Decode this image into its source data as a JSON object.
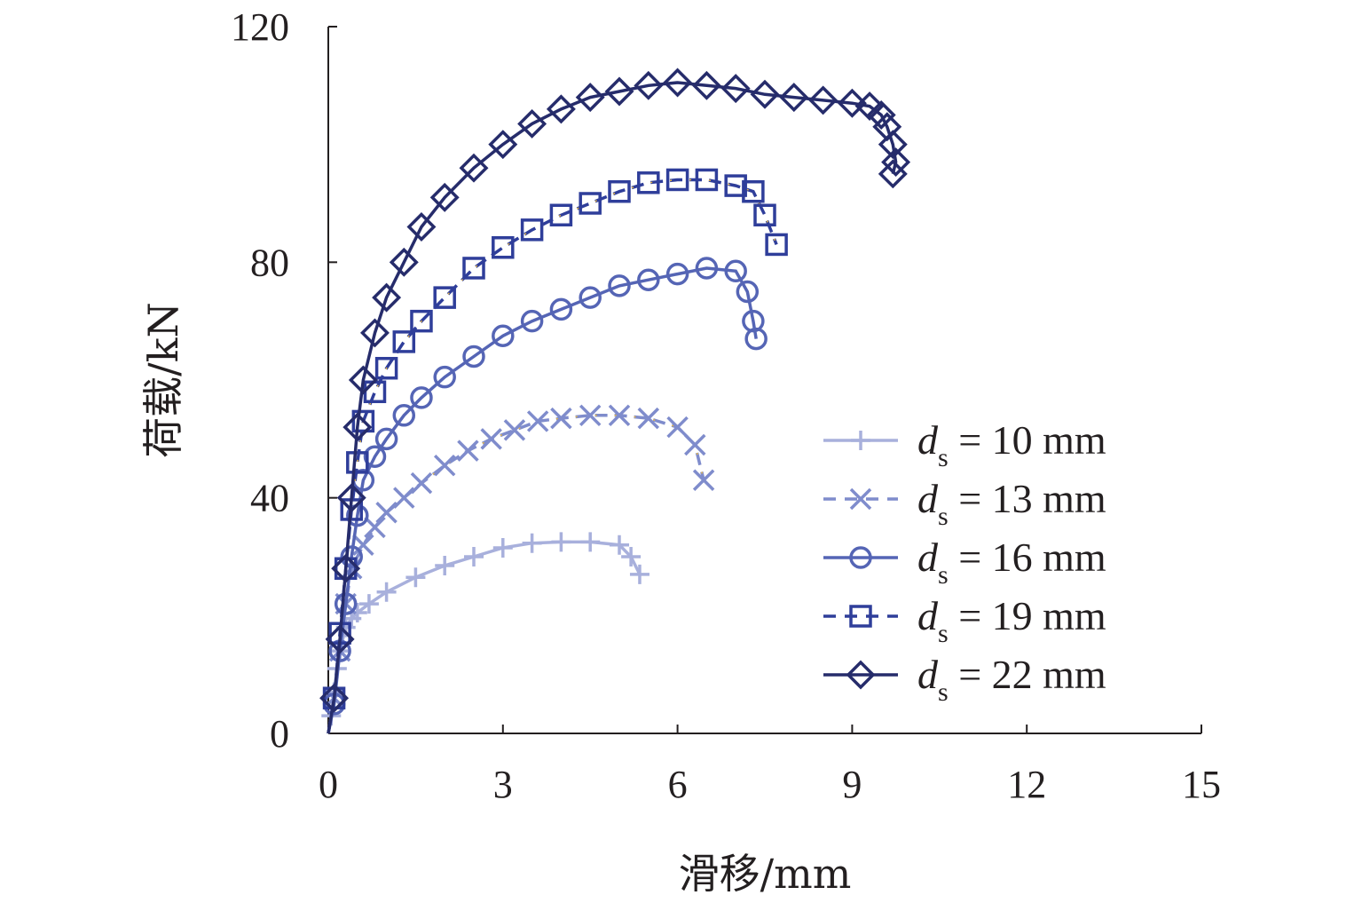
{
  "chart_data": {
    "type": "line",
    "xlabel": "滑移/mm",
    "ylabel": "荷载/kN",
    "xlim": [
      0,
      15
    ],
    "ylim": [
      0,
      120
    ],
    "xticks": [
      "0",
      "3",
      "6",
      "9",
      "12",
      "15"
    ],
    "yticks": [
      "0",
      "40",
      "80",
      "120"
    ],
    "grid": false,
    "legend_position": "bottom-right",
    "series": [
      {
        "name": "ds = 10 mm",
        "label_var": "d",
        "label_sub": "s",
        "label_rest": " = 10 mm",
        "color": "#a8b0dc",
        "marker": "plus",
        "dashed": false,
        "points": [
          [
            0,
            0
          ],
          [
            0.05,
            3
          ],
          [
            0.1,
            7
          ],
          [
            0.15,
            11
          ],
          [
            0.2,
            14
          ],
          [
            0.3,
            18
          ],
          [
            0.4,
            19.5
          ],
          [
            0.5,
            20.5
          ],
          [
            0.7,
            22
          ],
          [
            1,
            24
          ],
          [
            1.5,
            26.5
          ],
          [
            2,
            28.5
          ],
          [
            2.5,
            30
          ],
          [
            3,
            31.5
          ],
          [
            3.5,
            32.3
          ],
          [
            4,
            32.5
          ],
          [
            4.5,
            32.5
          ],
          [
            5,
            32
          ],
          [
            5.2,
            30
          ],
          [
            5.35,
            27
          ]
        ]
      },
      {
        "name": "ds = 13 mm",
        "label_var": "d",
        "label_sub": "s",
        "label_rest": " = 13 mm",
        "color": "#7f8ccc",
        "marker": "x",
        "dashed": true,
        "points": [
          [
            0,
            0
          ],
          [
            0.1,
            6
          ],
          [
            0.2,
            14
          ],
          [
            0.3,
            22
          ],
          [
            0.4,
            28
          ],
          [
            0.6,
            32
          ],
          [
            0.8,
            35
          ],
          [
            1.0,
            37.5
          ],
          [
            1.3,
            40
          ],
          [
            1.6,
            42.5
          ],
          [
            2.0,
            45.5
          ],
          [
            2.4,
            48
          ],
          [
            2.8,
            50
          ],
          [
            3.2,
            51.5
          ],
          [
            3.6,
            53
          ],
          [
            4.0,
            53.5
          ],
          [
            4.5,
            54
          ],
          [
            5.0,
            54
          ],
          [
            5.5,
            53.5
          ],
          [
            6.0,
            52
          ],
          [
            6.3,
            49
          ],
          [
            6.45,
            43
          ]
        ]
      },
      {
        "name": "ds = 16 mm",
        "label_var": "d",
        "label_sub": "s",
        "label_rest": " = 16 mm",
        "color": "#5565b5",
        "marker": "circle",
        "dashed": false,
        "points": [
          [
            0,
            0
          ],
          [
            0.1,
            5
          ],
          [
            0.2,
            14
          ],
          [
            0.3,
            22
          ],
          [
            0.4,
            30
          ],
          [
            0.5,
            37
          ],
          [
            0.6,
            43
          ],
          [
            0.8,
            47
          ],
          [
            1.0,
            50
          ],
          [
            1.3,
            54
          ],
          [
            1.6,
            57
          ],
          [
            2.0,
            60.5
          ],
          [
            2.5,
            64
          ],
          [
            3.0,
            67.5
          ],
          [
            3.5,
            70
          ],
          [
            4.0,
            72
          ],
          [
            4.5,
            74
          ],
          [
            5.0,
            76
          ],
          [
            5.5,
            77
          ],
          [
            6.0,
            78
          ],
          [
            6.5,
            79
          ],
          [
            7.0,
            78.5
          ],
          [
            7.2,
            75
          ],
          [
            7.3,
            70
          ],
          [
            7.35,
            67
          ]
        ]
      },
      {
        "name": "ds = 19 mm",
        "label_var": "d",
        "label_sub": "s",
        "label_rest": " = 19 mm",
        "color": "#2f3e9a",
        "marker": "square",
        "dashed": true,
        "points": [
          [
            0,
            0
          ],
          [
            0.1,
            6
          ],
          [
            0.2,
            17
          ],
          [
            0.3,
            28
          ],
          [
            0.4,
            38
          ],
          [
            0.5,
            46
          ],
          [
            0.6,
            53
          ],
          [
            0.8,
            58
          ],
          [
            1.0,
            62
          ],
          [
            1.3,
            66.5
          ],
          [
            1.6,
            70
          ],
          [
            2.0,
            74
          ],
          [
            2.5,
            79
          ],
          [
            3.0,
            82.5
          ],
          [
            3.5,
            85.5
          ],
          [
            4.0,
            88
          ],
          [
            4.5,
            90
          ],
          [
            5.0,
            92
          ],
          [
            5.5,
            93.5
          ],
          [
            6.0,
            94
          ],
          [
            6.5,
            94
          ],
          [
            7.0,
            93
          ],
          [
            7.3,
            92
          ],
          [
            7.5,
            88
          ],
          [
            7.7,
            83
          ]
        ]
      },
      {
        "name": "ds = 22 mm",
        "label_var": "d",
        "label_sub": "s",
        "label_rest": " = 22 mm",
        "color": "#262c6b",
        "marker": "diamond",
        "dashed": false,
        "points": [
          [
            0,
            0
          ],
          [
            0.1,
            6
          ],
          [
            0.2,
            16
          ],
          [
            0.3,
            28
          ],
          [
            0.4,
            40
          ],
          [
            0.5,
            52
          ],
          [
            0.6,
            60
          ],
          [
            0.8,
            68
          ],
          [
            1.0,
            74
          ],
          [
            1.3,
            80
          ],
          [
            1.6,
            86
          ],
          [
            2.0,
            91
          ],
          [
            2.5,
            96
          ],
          [
            3.0,
            100
          ],
          [
            3.5,
            103.5
          ],
          [
            4.0,
            106
          ],
          [
            4.5,
            108
          ],
          [
            5.0,
            109
          ],
          [
            5.5,
            110
          ],
          [
            6.0,
            110.5
          ],
          [
            6.5,
            110
          ],
          [
            7.0,
            109.5
          ],
          [
            7.5,
            108.5
          ],
          [
            8.0,
            108
          ],
          [
            8.5,
            107.5
          ],
          [
            9.0,
            107
          ],
          [
            9.3,
            106.5
          ],
          [
            9.5,
            105
          ],
          [
            9.6,
            103
          ],
          [
            9.7,
            100
          ],
          [
            9.75,
            97
          ],
          [
            9.7,
            95
          ]
        ]
      }
    ]
  }
}
